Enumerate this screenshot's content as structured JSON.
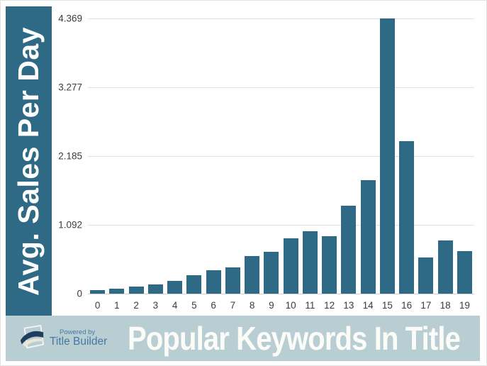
{
  "sidebar": {
    "label": "Avg. Sales Per Day",
    "bg": "#2e6a86",
    "text_color": "#ffffff"
  },
  "banner": {
    "bg": "#b9ced3",
    "title": "Popular Keywords In Title",
    "title_color": "#fbfbf8",
    "logo": {
      "powered_by": "Powered by",
      "brand": "Title Builder",
      "text_color": "#4579a0",
      "icon": "title-builder-book-logo",
      "icon_navy": "#1e3e5f",
      "icon_cream": "#ece4d4"
    }
  },
  "chart_data": {
    "type": "bar",
    "title": "Popular Keywords In Title",
    "xlabel": "",
    "ylabel": "Avg. Sales Per Day",
    "categories": [
      "0",
      "1",
      "2",
      "3",
      "4",
      "5",
      "6",
      "7",
      "8",
      "9",
      "10",
      "11",
      "12",
      "13",
      "14",
      "15",
      "16",
      "17",
      "18",
      "19"
    ],
    "values": [
      0.06,
      0.08,
      0.11,
      0.15,
      0.2,
      0.29,
      0.37,
      0.42,
      0.6,
      0.66,
      0.88,
      0.99,
      0.91,
      1.4,
      1.8,
      4.369,
      2.42,
      0.58,
      0.84,
      0.68
    ],
    "yticks": [
      0,
      1.092,
      2.185,
      3.277,
      4.369
    ],
    "ytick_labels": [
      "0",
      "1.092",
      "2.185",
      "3.277",
      "4.369"
    ],
    "ylim": [
      0,
      4.369
    ],
    "grid": true,
    "legend": false,
    "bar_color": "#2e6a86",
    "gridline_color": "#e2e2e2",
    "baseline_color": "#cfcfcf",
    "tick_text_color": "#3c3c3c"
  }
}
